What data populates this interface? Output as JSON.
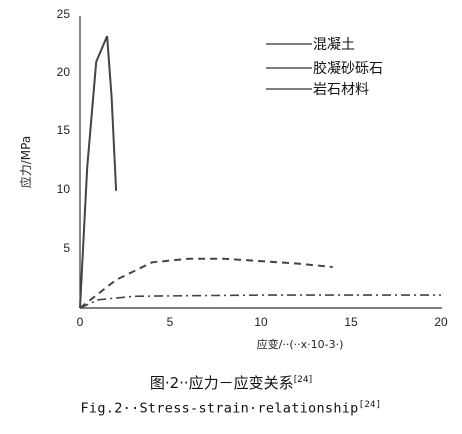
{
  "chart_data": {
    "type": "line",
    "ylabel": "应力/MPa",
    "xlabel": "应变/··(··x·10-3·)",
    "xlim": [
      0,
      20
    ],
    "ylim": [
      0,
      25
    ],
    "xticks": [
      "0",
      "5",
      "10",
      "15",
      "20"
    ],
    "yticks": [
      "5",
      "10",
      "15",
      "20",
      "25"
    ],
    "grid": false,
    "legend_position": "top-right",
    "series": [
      {
        "name": "混凝土",
        "style": "solid",
        "x": [
          0,
          0.4,
          0.9,
          1.5,
          1.75,
          2.0
        ],
        "y": [
          0,
          12,
          21,
          23.2,
          18,
          10
        ]
      },
      {
        "name": "胶凝砂砾石",
        "style": "dashed",
        "x": [
          0,
          2,
          4,
          6,
          8,
          10,
          12,
          14
        ],
        "y": [
          0,
          2.4,
          3.9,
          4.2,
          4.2,
          4.0,
          3.8,
          3.5
        ]
      },
      {
        "name": "岩石材料",
        "style": "dash-dot",
        "x": [
          0,
          1,
          3,
          6,
          10,
          15,
          20
        ],
        "y": [
          0,
          0.7,
          1.0,
          1.05,
          1.1,
          1.1,
          1.1
        ]
      }
    ]
  },
  "caption": {
    "cn_main": "图·2··应力－应变关系",
    "cn_ref": "[24]",
    "en_main": "Fig.2··Stress-strain·relationship",
    "en_ref": "[24]"
  }
}
